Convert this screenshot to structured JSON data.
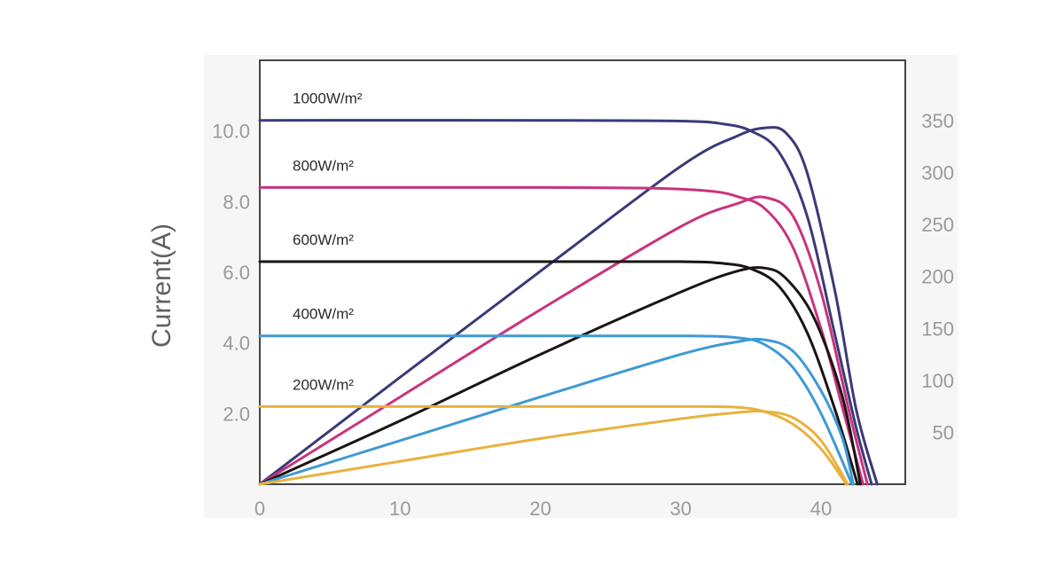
{
  "chart_data": {
    "type": "line",
    "title": "",
    "xlabel": "",
    "ylabel": "Current(A)",
    "y2label": "",
    "xlim": [
      0,
      46
    ],
    "ylim": [
      0,
      12
    ],
    "y2lim": [
      0,
      408
    ],
    "xticks": [
      "0",
      "10",
      "20",
      "30",
      "40"
    ],
    "yticks": [
      "2.0",
      "4.0",
      "6.0",
      "8.0",
      "10.0"
    ],
    "y2ticks": [
      "50",
      "100",
      "150",
      "200",
      "250",
      "300",
      "350"
    ],
    "grid": false,
    "series": [
      {
        "name": "1000W/m²",
        "color": "#3a3a78",
        "iv": {
          "x": [
            0,
            20,
            30,
            33,
            35,
            37,
            39,
            41,
            42.5,
            43.6
          ],
          "y": [
            10.3,
            10.3,
            10.28,
            10.2,
            10.0,
            9.4,
            7.6,
            4.2,
            1.6,
            0
          ]
        },
        "pv": {
          "x": [
            0,
            10,
            20,
            30,
            34,
            36,
            37.5,
            39,
            41,
            42.5,
            44.0
          ],
          "y": [
            0,
            103,
            205,
            306,
            335,
            343,
            338,
            300,
            185,
            72,
            0
          ]
        }
      },
      {
        "name": "800W/m²",
        "color": "#c8347e",
        "iv": {
          "x": [
            0,
            20,
            28,
            32,
            34,
            36,
            38,
            40,
            41.5,
            43.0
          ],
          "y": [
            8.4,
            8.4,
            8.38,
            8.3,
            8.15,
            7.8,
            6.7,
            4.4,
            2.2,
            0
          ]
        },
        "pv": {
          "x": [
            0,
            10,
            20,
            30,
            34,
            36,
            38,
            40,
            42,
            43.3
          ],
          "y": [
            0,
            84,
            168,
            248,
            270,
            276,
            258,
            185,
            70,
            0
          ]
        }
      },
      {
        "name": "600W/m²",
        "color": "#1a1414",
        "iv": {
          "x": [
            0,
            20,
            30,
            33,
            35,
            37,
            39,
            41,
            42.6
          ],
          "y": [
            6.3,
            6.3,
            6.3,
            6.25,
            6.1,
            5.6,
            4.3,
            2.1,
            0
          ]
        },
        "pv": {
          "x": [
            0,
            10,
            20,
            30,
            34,
            36,
            37.5,
            39.5,
            41.5,
            42.8
          ],
          "y": [
            0,
            61,
            125,
            185,
            205,
            208,
            198,
            160,
            85,
            0
          ]
        }
      },
      {
        "name": "400W/m²",
        "color": "#3e9ad4",
        "iv": {
          "x": [
            0,
            20,
            30,
            34,
            36,
            38,
            40,
            42.2
          ],
          "y": [
            4.2,
            4.2,
            4.2,
            4.15,
            3.95,
            3.3,
            2.0,
            0
          ]
        },
        "pv": {
          "x": [
            0,
            10,
            20,
            30,
            34,
            36,
            38,
            40,
            41.5,
            42.3
          ],
          "y": [
            0,
            42,
            84,
            125,
            137,
            139,
            128,
            90,
            45,
            0
          ]
        }
      },
      {
        "name": "200W/m²",
        "color": "#e8b23e",
        "iv": {
          "x": [
            0,
            20,
            30,
            34,
            36,
            38,
            40,
            41.8
          ],
          "y": [
            2.2,
            2.2,
            2.2,
            2.18,
            2.05,
            1.7,
            1.0,
            0
          ]
        },
        "pv": {
          "x": [
            0,
            10,
            20,
            30,
            34,
            36,
            38,
            40,
            41.9
          ],
          "y": [
            0,
            22,
            44,
            63,
            69,
            70,
            64,
            42,
            0
          ]
        }
      }
    ]
  }
}
